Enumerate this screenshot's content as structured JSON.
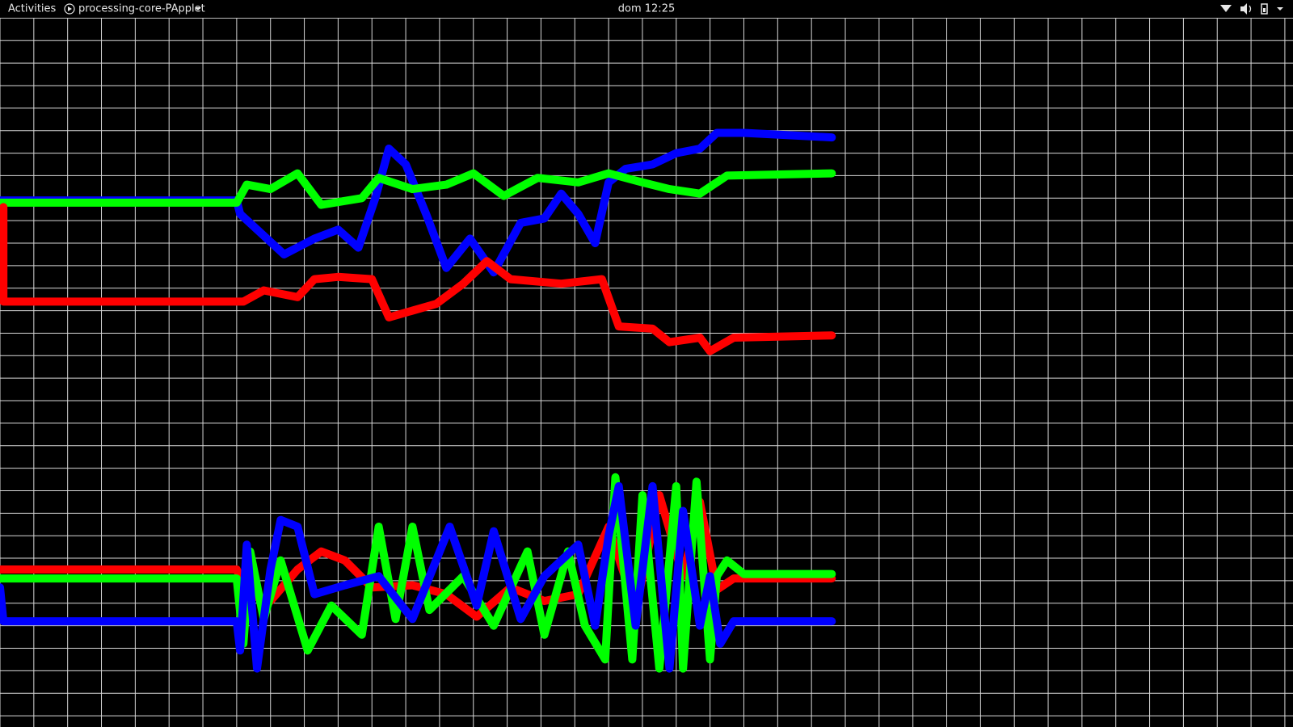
{
  "top_bar": {
    "activities": "Activities",
    "app_menu": "processing-core-PApplet",
    "clock": "dom 12:25"
  },
  "plot": {
    "series": [
      {
        "color": "#0000ff",
        "x": [
          0,
          7.0,
          7.1,
          8.4,
          9.3,
          10.0,
          10.6,
          11.1,
          11.5,
          12.0,
          12.6,
          13.2,
          13.9,
          14.6,
          15.4,
          16.1,
          16.6,
          17.1,
          17.6,
          18.0,
          18.5,
          19.3,
          20.0,
          20.7,
          21.2,
          22.0,
          24.6
        ],
        "y": [
          23.4,
          23.4,
          22.8,
          21.0,
          21.7,
          22.1,
          21.3,
          23.5,
          25.7,
          25.0,
          22.8,
          20.4,
          21.7,
          20.2,
          22.4,
          22.6,
          23.7,
          22.8,
          21.5,
          24.2,
          24.8,
          25.0,
          25.5,
          25.7,
          26.4,
          26.4,
          26.2
        ]
      },
      {
        "color": "#00ff00",
        "x": [
          0,
          7.0,
          7.3,
          8.0,
          8.8,
          9.5,
          10.7,
          11.2,
          12.2,
          13.2,
          14.0,
          14.9,
          15.9,
          17.1,
          18.0,
          19.0,
          19.8,
          20.7,
          21.5,
          24.6
        ],
        "y": [
          23.3,
          23.3,
          24.1,
          23.9,
          24.6,
          23.2,
          23.5,
          24.4,
          23.9,
          24.1,
          24.6,
          23.6,
          24.4,
          24.2,
          24.6,
          24.2,
          23.9,
          23.7,
          24.5,
          24.6
        ]
      },
      {
        "color": "#ff0000",
        "x": [
          0.1,
          0.1,
          7.2,
          7.8,
          8.8,
          9.3,
          10.0,
          11.0,
          11.5,
          12.9,
          13.7,
          14.4,
          15.1,
          16.6,
          17.8,
          18.3,
          19.3,
          19.8,
          20.7,
          21.0,
          21.7,
          24.6
        ],
        "y": [
          23.1,
          18.9,
          18.9,
          19.4,
          19.1,
          19.9,
          20.0,
          19.9,
          18.2,
          18.8,
          19.7,
          20.7,
          19.9,
          19.7,
          19.9,
          17.8,
          17.7,
          17.1,
          17.3,
          16.7,
          17.3,
          17.4
        ]
      },
      {
        "color": "#ff0000",
        "x": [
          0,
          7.0,
          7.3,
          8.0,
          8.8,
          9.5,
          10.2,
          11.0,
          12.2,
          13.2,
          14.1,
          15.1,
          16.1,
          17.1,
          18.0,
          18.8,
          19.5,
          20.2,
          20.7,
          21.2,
          21.7,
          24.6
        ],
        "y": [
          7.0,
          7.0,
          5.9,
          5.6,
          7.0,
          7.8,
          7.4,
          6.2,
          6.3,
          5.9,
          4.9,
          6.2,
          5.6,
          5.9,
          8.9,
          5.2,
          10.3,
          6.7,
          10.0,
          6.1,
          6.6,
          6.6
        ]
      },
      {
        "color": "#00ff00",
        "x": [
          0,
          7.0,
          7.2,
          7.4,
          7.8,
          8.3,
          9.1,
          9.8,
          10.7,
          11.2,
          11.7,
          12.2,
          12.7,
          13.7,
          14.6,
          15.6,
          16.1,
          16.8,
          17.3,
          17.9,
          18.2,
          18.7,
          19.0,
          19.5,
          20.0,
          20.2,
          20.6,
          21.0,
          21.2,
          21.5,
          22.0,
          24.6
        ],
        "y": [
          6.6,
          6.6,
          3.7,
          7.8,
          4.8,
          7.4,
          3.4,
          5.4,
          4.1,
          8.9,
          4.8,
          8.9,
          5.2,
          6.7,
          4.5,
          7.8,
          4.1,
          7.8,
          4.5,
          3.0,
          11.1,
          3.0,
          10.3,
          2.6,
          10.7,
          2.6,
          10.9,
          3.0,
          6.7,
          7.4,
          6.8,
          6.8
        ]
      },
      {
        "color": "#0000ff",
        "x": [
          0,
          0.1,
          7.0,
          7.1,
          7.3,
          7.6,
          8.0,
          8.3,
          8.8,
          9.3,
          10.2,
          11.2,
          12.2,
          13.3,
          14.1,
          14.6,
          15.4,
          16.1,
          17.1,
          17.6,
          18.0,
          18.3,
          18.8,
          19.3,
          19.8,
          20.2,
          20.7,
          21.0,
          21.3,
          21.7,
          24.6
        ],
        "y": [
          6.2,
          4.7,
          4.7,
          3.4,
          8.1,
          2.6,
          7.0,
          9.2,
          8.9,
          5.9,
          6.3,
          6.7,
          4.8,
          8.9,
          5.4,
          8.7,
          4.8,
          6.7,
          8.1,
          4.5,
          8.5,
          10.7,
          4.5,
          10.7,
          2.6,
          9.6,
          4.5,
          6.7,
          3.7,
          4.7,
          4.7
        ]
      }
    ]
  }
}
